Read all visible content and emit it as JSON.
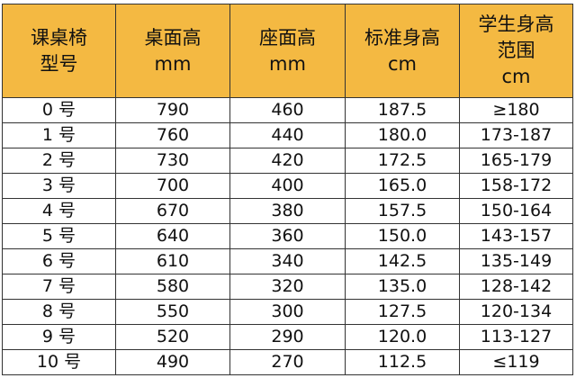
{
  "header_color": "#F4B942",
  "headers": [
    [
      "课桌椅",
      "型号"
    ],
    [
      "桌面高",
      "mm"
    ],
    [
      "座面高",
      "mm"
    ],
    [
      "标准身高",
      "cm"
    ],
    [
      "学生身高",
      "范围",
      "cm"
    ]
  ],
  "rows": [
    [
      "0 号",
      "790",
      "460",
      "187.5",
      "≥180"
    ],
    [
      "1 号",
      "760",
      "440",
      "180.0",
      "173-187"
    ],
    [
      "2 号",
      "730",
      "420",
      "172.5",
      "165-179"
    ],
    [
      "3 号",
      "700",
      "400",
      "165.0",
      "158-172"
    ],
    [
      "4 号",
      "670",
      "380",
      "157.5",
      "150-164"
    ],
    [
      "5 号",
      "640",
      "360",
      "150.0",
      "143-157"
    ],
    [
      "6 号",
      "610",
      "340",
      "142.5",
      "135-149"
    ],
    [
      "7 号",
      "580",
      "320",
      "135.0",
      "128-142"
    ],
    [
      "8 号",
      "550",
      "300",
      "127.5",
      "120-134"
    ],
    [
      "9 号",
      "520",
      "290",
      "120.0",
      "113-127"
    ],
    [
      "10 号",
      "490",
      "270",
      "112.5",
      "≤119"
    ]
  ]
}
